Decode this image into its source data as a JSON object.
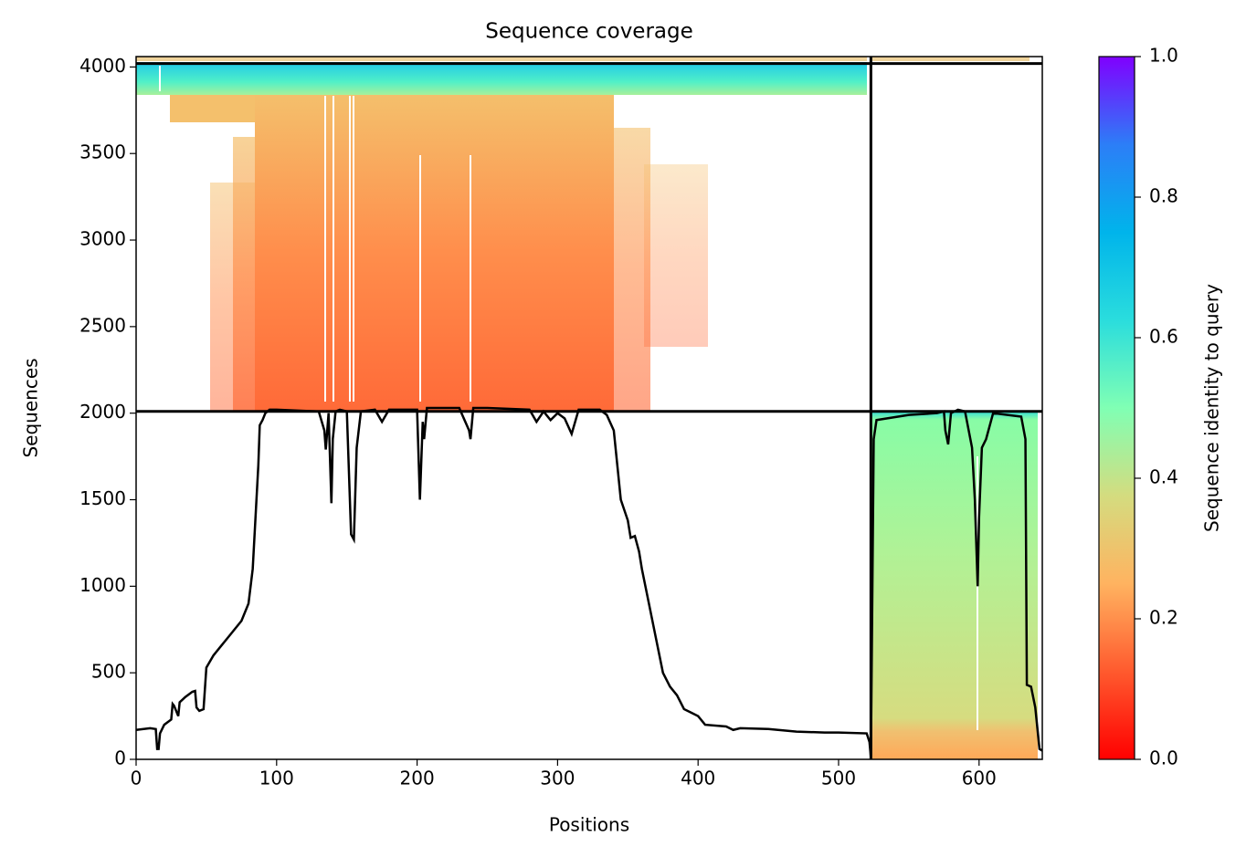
{
  "chart_data": {
    "type": "line",
    "title": "Sequence coverage",
    "x_label": "Positions",
    "y_label": "Sequences",
    "xlim": [
      0,
      645
    ],
    "ylim": [
      0,
      4060
    ],
    "xticks": [
      0,
      100,
      200,
      300,
      400,
      500,
      600
    ],
    "yticks": [
      0,
      500,
      1000,
      1500,
      2000,
      2500,
      3000,
      3500,
      4000
    ],
    "line_color": "#000000",
    "x": [
      0,
      10,
      14,
      15,
      16,
      17,
      20,
      25,
      26,
      27,
      30,
      31,
      35,
      40,
      42,
      43,
      45,
      48,
      50,
      55,
      60,
      65,
      70,
      75,
      80,
      83,
      85,
      87,
      88,
      90,
      92,
      95,
      100,
      130,
      134,
      135,
      137,
      139,
      140,
      142,
      145,
      150,
      153,
      155,
      157,
      160,
      170,
      175,
      180,
      200,
      202,
      204,
      205,
      207,
      230,
      237,
      238,
      240,
      250,
      280,
      285,
      290,
      295,
      300,
      305,
      310,
      315,
      330,
      335,
      340,
      345,
      350,
      352,
      355,
      358,
      360,
      365,
      370,
      375,
      380,
      385,
      390,
      395,
      400,
      405,
      420,
      425,
      430,
      450,
      470,
      490,
      500,
      520,
      522,
      523,
      525,
      527,
      550,
      570,
      575,
      576,
      578,
      580,
      585,
      590,
      595,
      597,
      599,
      600,
      602,
      605,
      610,
      630,
      633,
      634,
      637,
      640,
      643,
      645
    ],
    "values": [
      170,
      180,
      175,
      60,
      60,
      150,
      200,
      230,
      320,
      310,
      250,
      330,
      360,
      390,
      395,
      300,
      280,
      290,
      530,
      600,
      650,
      700,
      750,
      800,
      900,
      1100,
      1400,
      1700,
      1930,
      1960,
      2000,
      2020,
      2020,
      2010,
      1900,
      1790,
      2000,
      1480,
      1850,
      2010,
      2020,
      2010,
      1300,
      1270,
      1800,
      2010,
      2020,
      1950,
      2020,
      2020,
      1500,
      1950,
      1850,
      2030,
      2030,
      1900,
      1850,
      2030,
      2030,
      2020,
      1950,
      2010,
      1960,
      2000,
      1970,
      1880,
      2020,
      2020,
      1990,
      1900,
      1500,
      1380,
      1280,
      1290,
      1200,
      1100,
      900,
      700,
      500,
      420,
      370,
      290,
      270,
      250,
      200,
      190,
      170,
      180,
      175,
      160,
      155,
      155,
      150,
      100,
      10,
      1850,
      1960,
      1990,
      2000,
      2010,
      1900,
      1820,
      2000,
      2020,
      2010,
      1800,
      1500,
      1000,
      1400,
      1800,
      1850,
      2000,
      1980,
      1850,
      430,
      420,
      300,
      60,
      50
    ],
    "boundaries_y": [
      2010,
      4020
    ],
    "boundaries_x": [
      523
    ],
    "colorbar": {
      "label": "Sequence identity to query",
      "lim": [
        0,
        1
      ],
      "ticks": [
        {
          "value": 0,
          "label": "0.0"
        },
        0.2,
        0.4,
        0.6,
        0.8,
        {
          "value": 1,
          "label": "1.0"
        }
      ]
    }
  }
}
